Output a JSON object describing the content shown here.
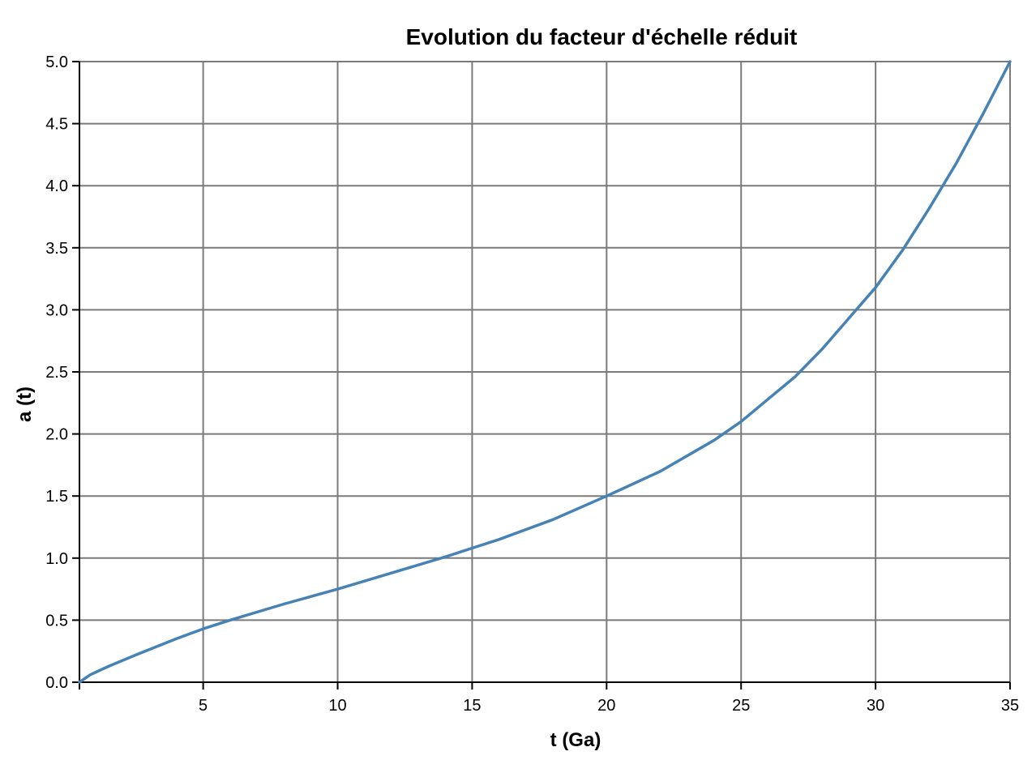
{
  "chart_data": {
    "type": "line",
    "title": "Evolution du facteur d'échelle réduit",
    "xlabel": "t (Ga)",
    "ylabel": "a (t)",
    "xlim": [
      0.4,
      35
    ],
    "ylim": [
      0,
      5
    ],
    "x_ticks": [
      5,
      10,
      15,
      20,
      25,
      30,
      35
    ],
    "y_ticks": [
      0.0,
      0.5,
      1.0,
      1.5,
      2.0,
      2.5,
      3.0,
      3.5,
      4.0,
      4.5,
      5.0
    ],
    "x_tick_labels": [
      "5",
      "10",
      "15",
      "20",
      "25",
      "30",
      "35"
    ],
    "y_tick_labels": [
      "0.0",
      "0.5",
      "1.0",
      "1.5",
      "2.0",
      "2.5",
      "3.0",
      "3.5",
      "4.0",
      "4.5",
      "5.0"
    ],
    "grid": true,
    "colors": {
      "line": "#4682b4",
      "grid": "#7a7a7a",
      "axis": "#000000"
    },
    "series": [
      {
        "x": [
          0.4,
          0.8,
          1.5,
          2.5,
          4,
          5,
          6,
          8,
          10,
          12,
          14,
          15,
          16,
          18,
          20,
          22,
          24,
          25,
          26,
          27,
          28,
          29,
          30,
          31,
          32,
          33,
          34,
          35
        ],
        "y": [
          0.0,
          0.06,
          0.13,
          0.22,
          0.35,
          0.43,
          0.5,
          0.63,
          0.75,
          0.88,
          1.01,
          1.08,
          1.15,
          1.31,
          1.5,
          1.7,
          1.95,
          2.1,
          2.28,
          2.46,
          2.68,
          2.93,
          3.18,
          3.48,
          3.82,
          4.18,
          4.58,
          5.0
        ]
      }
    ]
  }
}
